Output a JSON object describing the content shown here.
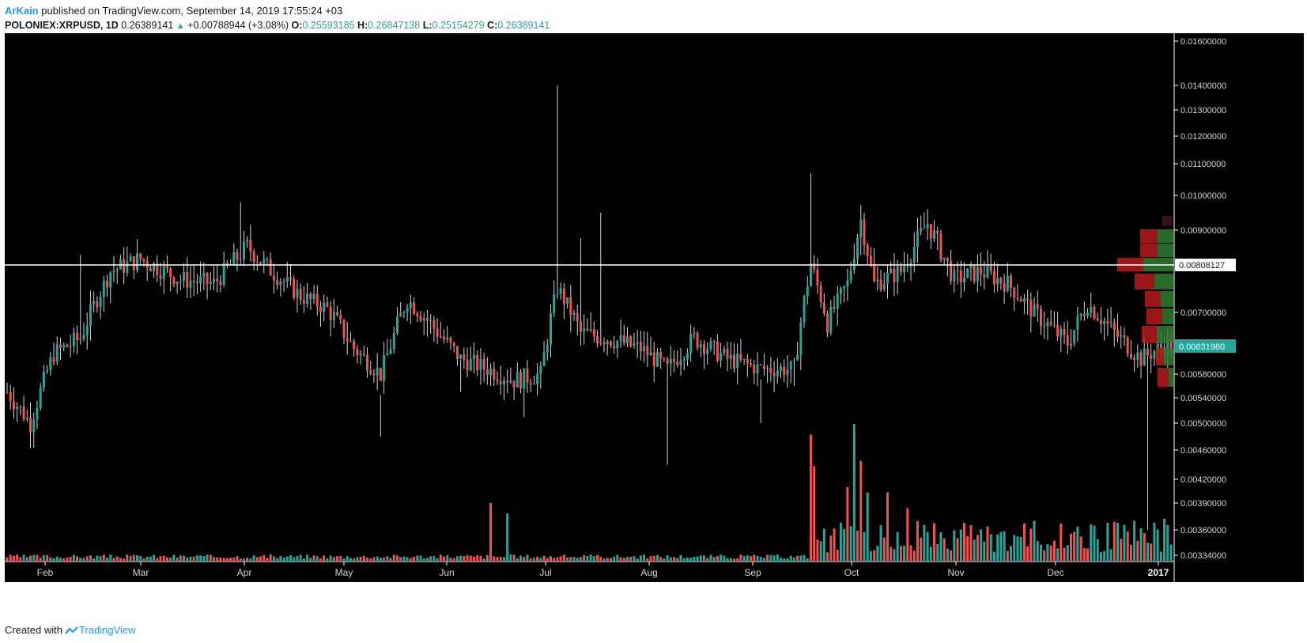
{
  "header": {
    "author": "ArKain",
    "published": "published on TradingView.com, September 14, 2019 17:55:24 +03",
    "symbol": "POLONIEX:XRPUSD, 1D",
    "last": "0.26389141",
    "change": "+0.00788944 (+3.08%)",
    "open_label": "O:",
    "open": "0.25593185",
    "high_label": "H:",
    "high": "0.26847138",
    "low_label": "L:",
    "low": "0.25154279",
    "close_label": "C:",
    "close": "0.26389141"
  },
  "footer": {
    "created_with": "Created with",
    "brand": "TradingView"
  },
  "colors": {
    "up": "#26a69a",
    "down": "#ef5350",
    "background": "#000000",
    "wick": "#d1d4dc",
    "axis_text": "#d1d4dc"
  },
  "chart_data": {
    "type": "candlestick",
    "title": "",
    "xlabel": "",
    "ylabel": "",
    "grid": false,
    "y_ticks": [
      "0.01600000",
      "0.01400000",
      "0.01300000",
      "0.01200000",
      "0.01100000",
      "0.01000000",
      "0.00900000",
      "0.00700000",
      "0.00580000",
      "0.00540000",
      "0.00500000",
      "0.00460000",
      "0.00420000",
      "0.00390000",
      "0.00360000",
      "0.00334000"
    ],
    "x_ticks": [
      "Feb",
      "Mar",
      "Apr",
      "May",
      "Jun",
      "Jul",
      "Aug",
      "Sep",
      "Oct",
      "Nov",
      "Dec",
      "2017"
    ],
    "horizontal_line": {
      "label": "0.00808127",
      "value": 0.00808127
    },
    "last_price": {
      "label": "0.00631980",
      "value": 0.0063198
    },
    "price_path": [
      [
        0,
        0.0055
      ],
      [
        7,
        0.005
      ],
      [
        14,
        0.0062
      ],
      [
        22,
        0.0065
      ],
      [
        31,
        0.008
      ],
      [
        40,
        0.0083
      ],
      [
        52,
        0.0078
      ],
      [
        62,
        0.0077
      ],
      [
        72,
        0.0086
      ],
      [
        78,
        0.0081
      ],
      [
        88,
        0.0074
      ],
      [
        96,
        0.0071
      ],
      [
        104,
        0.0063
      ],
      [
        112,
        0.0058
      ],
      [
        120,
        0.0073
      ],
      [
        128,
        0.0067
      ],
      [
        136,
        0.0061
      ],
      [
        144,
        0.0059
      ],
      [
        152,
        0.0057
      ],
      [
        160,
        0.0058
      ],
      [
        165,
        0.0076
      ],
      [
        172,
        0.0066
      ],
      [
        180,
        0.0065
      ],
      [
        190,
        0.0063
      ],
      [
        198,
        0.0059
      ],
      [
        206,
        0.0065
      ],
      [
        216,
        0.0061
      ],
      [
        226,
        0.0059
      ],
      [
        236,
        0.0059
      ],
      [
        241,
        0.0082
      ],
      [
        246,
        0.0068
      ],
      [
        252,
        0.0077
      ],
      [
        256,
        0.0093
      ],
      [
        260,
        0.0077
      ],
      [
        268,
        0.008
      ],
      [
        276,
        0.0092
      ],
      [
        284,
        0.0078
      ],
      [
        292,
        0.008
      ],
      [
        300,
        0.0077
      ],
      [
        308,
        0.007
      ],
      [
        318,
        0.0064
      ],
      [
        324,
        0.0072
      ],
      [
        332,
        0.0066
      ],
      [
        340,
        0.0061
      ],
      [
        348,
        0.0064
      ]
    ],
    "volume_spikes": [
      [
        145,
        0.055
      ],
      [
        150,
        0.045
      ],
      [
        241,
        0.12
      ],
      [
        242,
        0.09
      ],
      [
        252,
        0.07
      ],
      [
        254,
        0.13
      ],
      [
        256,
        0.095
      ],
      [
        258,
        0.065
      ],
      [
        264,
        0.065
      ],
      [
        270,
        0.05
      ],
      [
        347,
        0.04
      ]
    ]
  }
}
